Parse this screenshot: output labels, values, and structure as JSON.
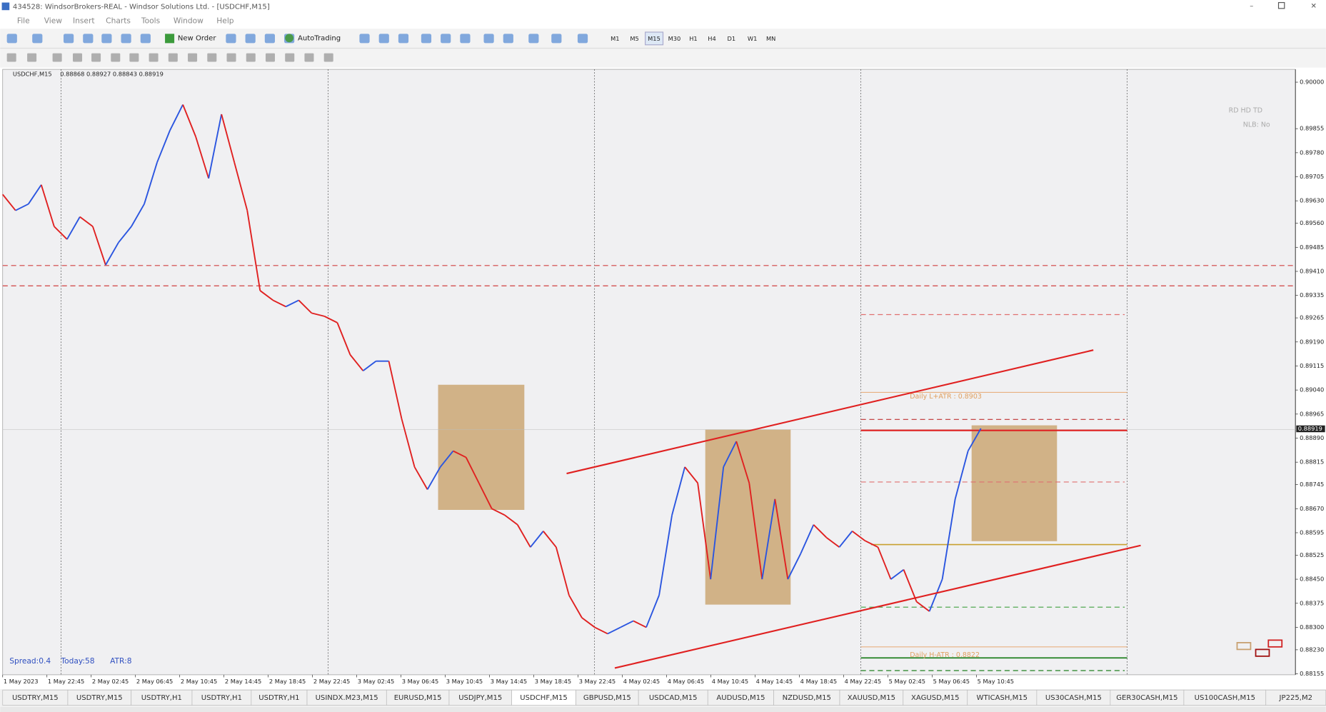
{
  "window": {
    "title": "434528: WindsorBrokers-REAL - Windsor Solutions Ltd. - [USDCHF,M15]",
    "menu": [
      "File",
      "View",
      "Insert",
      "Charts",
      "Tools",
      "Window",
      "Help"
    ]
  },
  "toolbar": {
    "new_order": "New Order",
    "auto_trading": "AutoTrading",
    "timeframes": [
      "M1",
      "M5",
      "M15",
      "M30",
      "H1",
      "H4",
      "D1",
      "W1",
      "MN"
    ]
  },
  "chart": {
    "header": "USDCHF,M15",
    "ohlc": "0.88868 0.88927 0.88843 0.88919",
    "ylim": [
      0.88152,
      0.9004
    ],
    "yticks": [
      {
        "value": 0.9,
        "label": "0.90000"
      },
      {
        "value": 0.89855,
        "label": "0.89855"
      },
      {
        "value": 0.8978,
        "label": "0.89780"
      },
      {
        "value": 0.89705,
        "label": "0.89705"
      },
      {
        "value": 0.8963,
        "label": "0.89630"
      },
      {
        "value": 0.8956,
        "label": "0.89560"
      },
      {
        "value": 0.89485,
        "label": "0.89485"
      },
      {
        "value": 0.8941,
        "label": "0.89410"
      },
      {
        "value": 0.89335,
        "label": "0.89335"
      },
      {
        "value": 0.89265,
        "label": "0.89265"
      },
      {
        "value": 0.8919,
        "label": "0.89190"
      },
      {
        "value": 0.89115,
        "label": "0.89115"
      },
      {
        "value": 0.8904,
        "label": "0.89040"
      },
      {
        "value": 0.88965,
        "label": "0.88965"
      },
      {
        "value": 0.8889,
        "label": "0.88890"
      },
      {
        "value": 0.88815,
        "label": "0.88815"
      },
      {
        "value": 0.88745,
        "label": "0.88745"
      },
      {
        "value": 0.8867,
        "label": "0.88670"
      },
      {
        "value": 0.88595,
        "label": "0.88595"
      },
      {
        "value": 0.88525,
        "label": "0.88525"
      },
      {
        "value": 0.8845,
        "label": "0.88450"
      },
      {
        "value": 0.88375,
        "label": "0.88375"
      },
      {
        "value": 0.883,
        "label": "0.88300"
      },
      {
        "value": 0.8823,
        "label": "0.88230"
      },
      {
        "value": 0.88155,
        "label": "0.88155"
      }
    ],
    "xticks": [
      "1 May 2023",
      "1 May 22:45",
      "2 May 02:45",
      "2 May 06:45",
      "2 May 10:45",
      "2 May 14:45",
      "2 May 18:45",
      "2 May 22:45",
      "3 May 02:45",
      "3 May 06:45",
      "3 May 10:45",
      "3 May 14:45",
      "3 May 18:45",
      "3 May 22:45",
      "4 May 02:45",
      "4 May 06:45",
      "4 May 10:45",
      "4 May 14:45",
      "4 May 18:45",
      "4 May 22:45",
      "5 May 02:45",
      "5 May 06:45",
      "5 May 10:45"
    ],
    "closes": [
      0.8965,
      0.896,
      0.8962,
      0.8968,
      0.8955,
      0.8951,
      0.8958,
      0.8955,
      0.8943,
      0.895,
      0.8955,
      0.8962,
      0.8975,
      0.8985,
      0.8993,
      0.8983,
      0.897,
      0.899,
      0.8975,
      0.896,
      0.8935,
      0.8932,
      0.893,
      0.8932,
      0.8928,
      0.8927,
      0.8925,
      0.8915,
      0.891,
      0.8913,
      0.8913,
      0.8895,
      0.888,
      0.8873,
      0.888,
      0.8885,
      0.8883,
      0.8875,
      0.8867,
      0.8865,
      0.8862,
      0.8855,
      0.886,
      0.8855,
      0.884,
      0.8833,
      0.883,
      0.8828,
      0.883,
      0.8832,
      0.883,
      0.884,
      0.8865,
      0.888,
      0.8875,
      0.8845,
      0.888,
      0.8888,
      0.8875,
      0.8845,
      0.887,
      0.8845,
      0.8853,
      0.8862,
      0.8858,
      0.8855,
      0.886,
      0.8857,
      0.8855,
      0.8845,
      0.8848,
      0.8838,
      0.8835,
      0.8845,
      0.887,
      0.8885,
      0.8892
    ],
    "current_price": 0.88919,
    "annotations": {
      "upper_atr": "Daily L+ATR : 0.8903",
      "lower_atr": "Daily H-ATR : 0.8822",
      "spread": "Spread:0.4",
      "today": "Today:58",
      "atr": "ATR:8",
      "flags": "RD HD TD",
      "nlb": "NLB: No"
    }
  },
  "tabs": [
    "USDTRY,M15",
    "USDTRY,M15",
    "USDTRY,H1",
    "USDTRY,H1",
    "USDTRY,H1",
    "USINDX.M23,M15",
    "EURUSD,M15",
    "USDJPY,M15",
    "USDCHF,M15",
    "GBPUSD,M15",
    "USDCAD,M15",
    "AUDUSD,M15",
    "NZDUSD,M15",
    "XAUUSD,M15",
    "XAGUSD,M15",
    "WTICASH,M15",
    "US30CASH,M15",
    "GER30CASH,M15",
    "US100CASH,M15",
    "JP225,M2"
  ]
}
